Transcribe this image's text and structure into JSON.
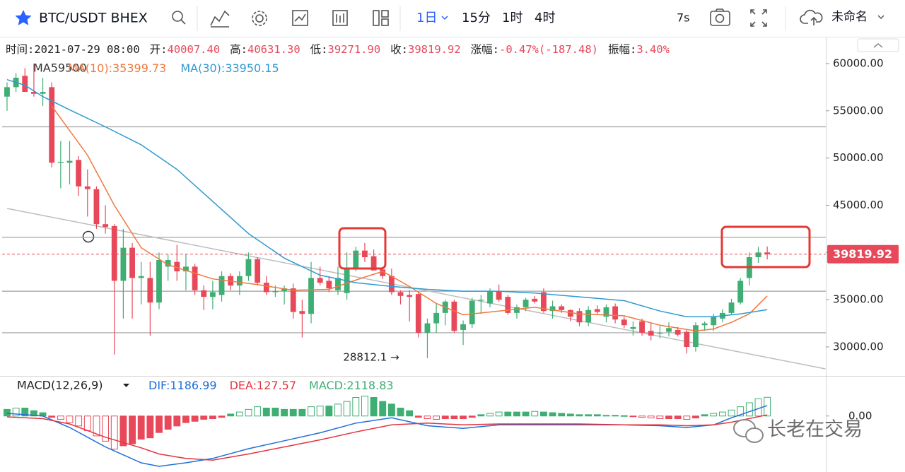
{
  "toolbar": {
    "symbol": "BTC/USDT BHEX",
    "intervals": [
      "1日",
      "15分",
      "1时",
      "4时"
    ],
    "timer": "7s",
    "layout_name": "未命名"
  },
  "info": [
    {
      "label": "时间:",
      "value": "2021-07-29 08:00"
    },
    {
      "label": "开:",
      "value": "40007.40"
    },
    {
      "label": "高:",
      "value": "40631.30"
    },
    {
      "label": "低:",
      "value": "39271.90"
    },
    {
      "label": "收:",
      "value": "39819.92"
    },
    {
      "label": "涨幅:",
      "value": "-0.47%(-187.48)"
    },
    {
      "label": "振幅:",
      "value": "3.40%"
    }
  ],
  "watermark": "长老在交易",
  "chart_data": [
    {
      "type": "candlestick",
      "legend_overlay": "MA59500",
      "up_color": "#3fae73",
      "down_color": "#e8495a",
      "open": [
        56500,
        57500,
        58700,
        57000,
        56800,
        57500,
        49500,
        49500,
        49800,
        47000,
        46700,
        43000,
        42800,
        37000,
        40500,
        37300,
        37300,
        34700,
        38500,
        39000,
        38000,
        38500,
        36000,
        35300,
        35500,
        37500,
        36500,
        37500,
        39300,
        36800,
        35800,
        35900,
        36200,
        33800,
        33500,
        37300,
        37000,
        36000,
        35700,
        38400,
        40200,
        39600,
        38200,
        37500,
        35800,
        35500,
        35600,
        31500,
        32500,
        33600,
        34800,
        31800,
        32400,
        34900,
        34600,
        35900,
        35300,
        33600,
        34200,
        35100,
        35800,
        33800,
        34300,
        33900,
        33800,
        32600,
        34000,
        33200,
        34300,
        32900,
        31900,
        32700,
        31700,
        31400,
        31600,
        31800,
        31600,
        30000,
        32300,
        32300,
        33000,
        33600,
        34700,
        37300,
        39500,
        40007.4
      ],
      "high": [
        58000,
        59000,
        59500,
        60000,
        58500,
        58000,
        51800,
        51800,
        50200,
        48800,
        47000,
        45000,
        43000,
        42500,
        41000,
        39000,
        39000,
        40000,
        39800,
        40800,
        39800,
        38800,
        36500,
        37000,
        38000,
        37800,
        38000,
        40000,
        39500,
        37500,
        36500,
        36500,
        36700,
        35000,
        39000,
        38500,
        37500,
        38500,
        40000,
        40600,
        41000,
        40300,
        38300,
        38300,
        36000,
        36000,
        35800,
        33000,
        34600,
        35000,
        35000,
        32800,
        35200,
        35500,
        36200,
        36600,
        35500,
        34500,
        35200,
        35400,
        36200,
        34900,
        34500,
        34000,
        34100,
        34300,
        34400,
        34500,
        34600,
        33200,
        32700,
        33000,
        32500,
        32200,
        32600,
        32100,
        31800,
        32600,
        32700,
        33500,
        34000,
        35100,
        37300,
        40000,
        40600,
        40631.3
      ],
      "low": [
        55000,
        57000,
        57200,
        56500,
        55500,
        49000,
        46800,
        47200,
        46000,
        43800,
        42500,
        42000,
        29200,
        33000,
        33000,
        34500,
        31200,
        34000,
        37000,
        37000,
        36000,
        35500,
        33900,
        34000,
        34800,
        36000,
        35500,
        37000,
        36500,
        35500,
        35300,
        34500,
        33000,
        31000,
        32500,
        36500,
        35800,
        35500,
        35000,
        38000,
        39000,
        38100,
        37200,
        35500,
        34500,
        32700,
        31000,
        28812.1,
        31500,
        32300,
        31500,
        30200,
        32000,
        33500,
        34200,
        34800,
        33400,
        33000,
        33800,
        34600,
        33600,
        33000,
        33600,
        32700,
        32200,
        32200,
        33500,
        32600,
        32500,
        32000,
        31200,
        31200,
        30700,
        30900,
        31100,
        31100,
        29300,
        29500,
        31700,
        31700,
        32600,
        33400,
        34500,
        36500,
        38900,
        39271.9
      ],
      "close": [
        57500,
        58500,
        57000,
        56800,
        57000,
        49500,
        49600,
        49700,
        47000,
        46700,
        43000,
        42700,
        37000,
        40500,
        37300,
        37500,
        34700,
        39200,
        39200,
        38000,
        38500,
        36000,
        35300,
        35800,
        37500,
        36500,
        37500,
        39300,
        36800,
        35800,
        35900,
        36200,
        33700,
        33500,
        37300,
        36800,
        36200,
        37300,
        38400,
        40200,
        39500,
        38100,
        37500,
        35800,
        35400,
        35300,
        31500,
        32500,
        33600,
        34800,
        31700,
        32400,
        34900,
        35000,
        35900,
        35000,
        33600,
        34200,
        35000,
        34800,
        33800,
        34300,
        33900,
        33200,
        32600,
        33900,
        33700,
        34200,
        32900,
        32300,
        32100,
        31500,
        31200,
        31500,
        32000,
        31300,
        30000,
        32300,
        32500,
        33200,
        33600,
        34700,
        37000,
        39500,
        40000,
        39819.92
      ],
      "xlim": [
        -0.55,
        91.55
      ],
      "ylim": [
        27083,
        62613
      ],
      "yticks": [
        {
          "value": 30000,
          "label": "30000.00"
        },
        {
          "value": 35000,
          "label": "35000.00"
        },
        {
          "value": 40000,
          "label": "40000.00"
        },
        {
          "value": 45000,
          "label": "45000.00"
        },
        {
          "value": 50000,
          "label": "50000.00"
        },
        {
          "value": 55000,
          "label": "55000.00"
        },
        {
          "value": 60000,
          "label": "60000.00"
        }
      ],
      "series": [
        {
          "name": "MA(10):",
          "color": "#f0783c",
          "x": [
            5,
            9,
            12,
            15,
            18,
            23,
            28,
            32,
            36,
            40,
            42,
            45,
            48,
            51,
            55,
            59,
            64,
            69,
            73,
            77,
            79,
            81,
            83,
            85
          ],
          "values": [
            55500,
            50300,
            45000,
            40500,
            38700,
            37200,
            36600,
            36000,
            36100,
            37400,
            38000,
            36400,
            34600,
            33400,
            33800,
            34200,
            33500,
            33300,
            32300,
            31700,
            31900,
            32600,
            33500,
            35399.73
          ]
        },
        {
          "name": "MA(30):",
          "color": "#2f9ad0",
          "x": [
            0,
            2,
            4,
            7,
            11,
            15,
            19,
            23,
            27,
            31,
            35,
            39,
            43,
            47,
            51,
            55,
            59,
            64,
            69,
            73,
            76,
            79,
            82,
            85
          ],
          "values": [
            58300,
            57700,
            56500,
            55100,
            53300,
            51400,
            48800,
            45400,
            42000,
            39400,
            37600,
            36800,
            36400,
            36100,
            35900,
            35900,
            35700,
            35300,
            34900,
            33800,
            33200,
            33200,
            33500,
            33950.15
          ]
        }
      ],
      "horizontal_lines": [
        53300,
        41600,
        35900,
        31500
      ],
      "trendline": {
        "x": [
          0,
          91.5
        ],
        "values": [
          44660,
          27680
        ]
      },
      "last_price": 39819.92,
      "annotation": "28812.1 →"
    },
    {
      "type": "macd",
      "title": "MACD(12,26,9)",
      "up_color": "#3fae73",
      "down_color": "#e8495a",
      "xlim": [
        -0.55,
        91.55
      ],
      "ylim": [
        -6100,
        4300
      ],
      "yticks": [
        {
          "value": 0,
          "label": "0.00"
        }
      ],
      "histogram": {
        "name": "MACD:",
        "values": [
          750,
          900,
          900,
          600,
          375,
          -150,
          -375,
          -750,
          -1125,
          -1650,
          -2250,
          -2850,
          -3750,
          -3375,
          -3150,
          -2625,
          -2475,
          -1875,
          -1500,
          -1125,
          -750,
          -600,
          -375,
          -300,
          -150,
          225,
          450,
          750,
          1050,
          900,
          900,
          750,
          750,
          750,
          1050,
          1125,
          1125,
          1350,
          1650,
          2100,
          2250,
          2100,
          1650,
          1350,
          900,
          600,
          -150,
          -300,
          -375,
          -300,
          -300,
          -300,
          -150,
          150,
          300,
          450,
          450,
          450,
          450,
          525,
          450,
          375,
          300,
          225,
          150,
          150,
          150,
          75,
          75,
          40,
          -75,
          -150,
          -225,
          -300,
          -300,
          -300,
          -375,
          -225,
          150,
          300,
          450,
          675,
          1050,
          1500,
          1950,
          2118.83
        ]
      },
      "series": [
        {
          "name": "DIF:",
          "color": "#1f6fd8",
          "x": [
            0,
            4,
            7,
            11,
            15,
            17,
            20,
            23,
            27,
            31,
            35,
            39,
            43,
            47,
            51,
            55,
            59,
            64,
            69,
            73,
            76,
            79,
            81,
            85
          ],
          "values": [
            300,
            0,
            -1300,
            -3500,
            -5300,
            -5700,
            -5300,
            -4800,
            -3700,
            -2800,
            -1900,
            -800,
            -200,
            -1100,
            -1400,
            -1000,
            -1000,
            -1000,
            -1000,
            -1100,
            -1300,
            -1000,
            -200,
            1186.99
          ]
        },
        {
          "name": "DEA:",
          "color": "#e3343e",
          "x": [
            0,
            4,
            7,
            11,
            15,
            17,
            20,
            23,
            27,
            31,
            35,
            39,
            43,
            47,
            51,
            55,
            59,
            64,
            69,
            73,
            76,
            79,
            81,
            85
          ],
          "values": [
            -100,
            -300,
            -900,
            -2400,
            -3600,
            -4300,
            -4800,
            -5000,
            -4300,
            -3500,
            -2700,
            -1800,
            -1000,
            -800,
            -1000,
            -900,
            -900,
            -900,
            -1000,
            -1000,
            -1100,
            -1000,
            -700,
            127.57
          ]
        }
      ]
    }
  ]
}
